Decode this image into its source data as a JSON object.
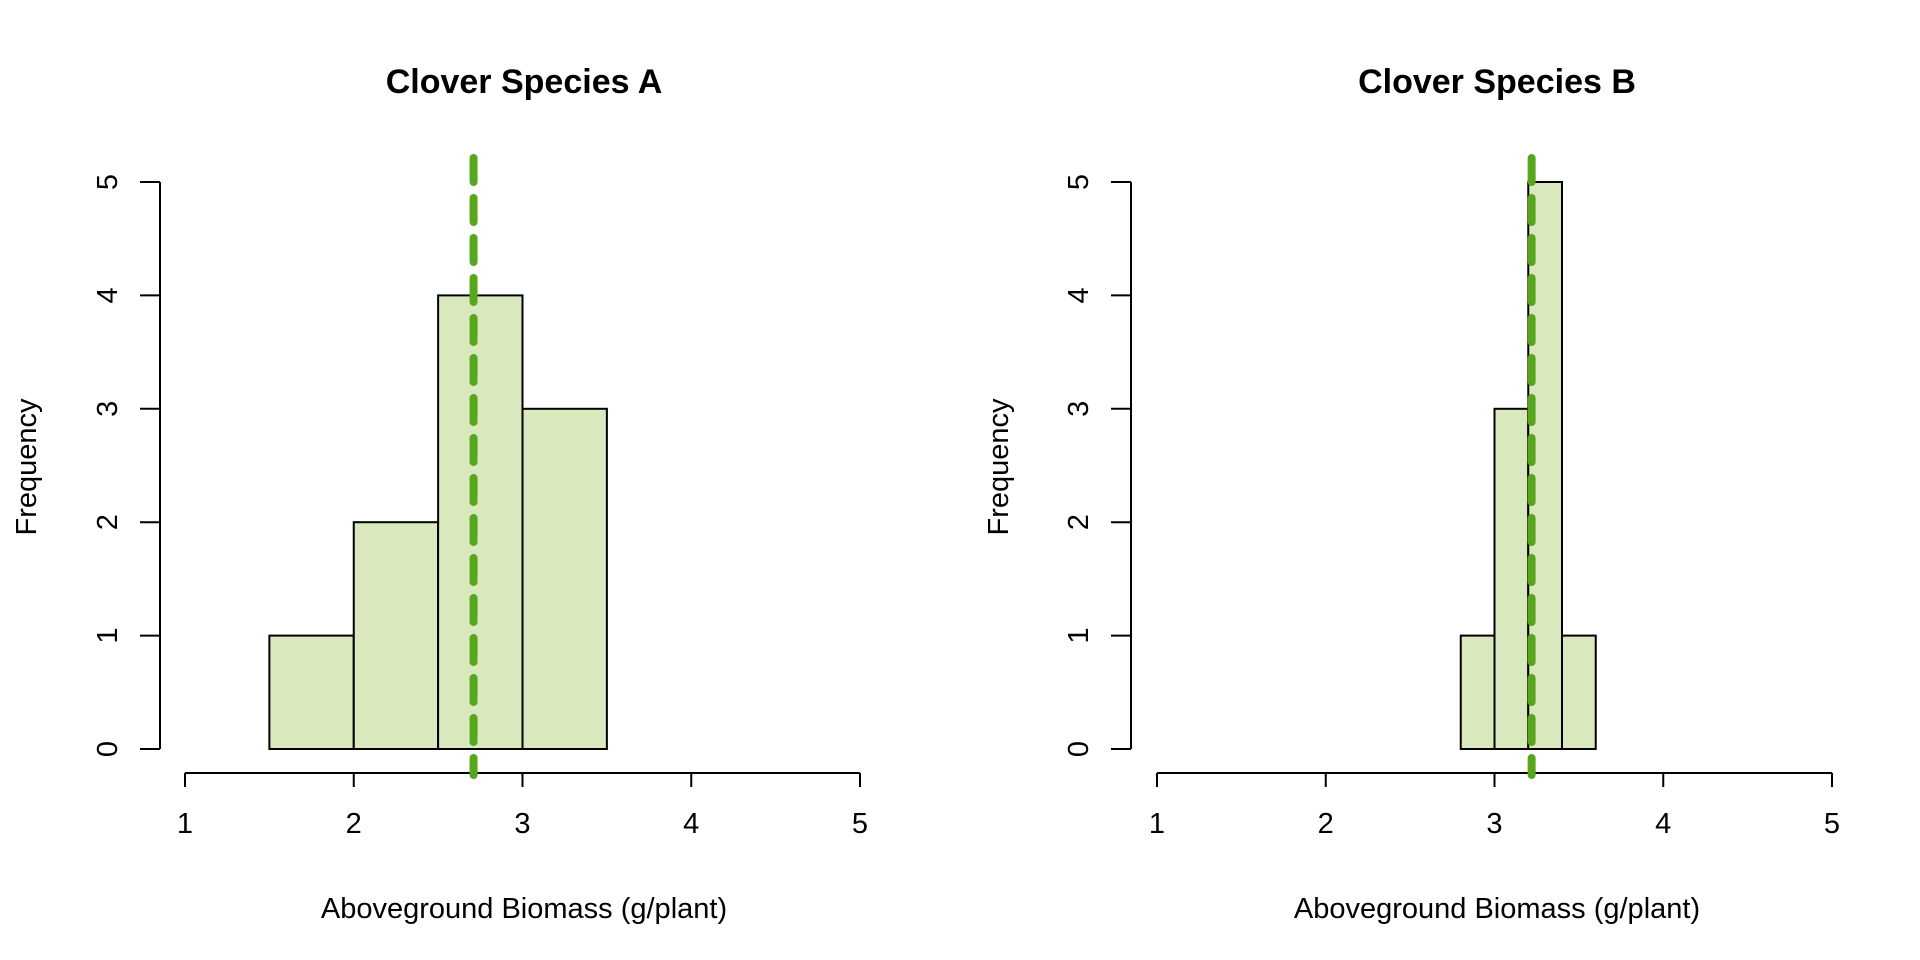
{
  "chart_data": [
    {
      "type": "histogram",
      "title": "Clover Species A",
      "xlabel": "Aboveground Biomass (g/plant)",
      "ylabel": "Frequency",
      "xlim": [
        1,
        5
      ],
      "ylim": [
        0,
        5
      ],
      "x_ticks": [
        "1",
        "2",
        "3",
        "4",
        "5"
      ],
      "y_ticks": [
        "0",
        "1",
        "2",
        "3",
        "4",
        "5"
      ],
      "bins": [
        {
          "from": 1.5,
          "to": 2.0,
          "count": 1
        },
        {
          "from": 2.0,
          "to": 2.5,
          "count": 2
        },
        {
          "from": 2.5,
          "to": 3.0,
          "count": 4
        },
        {
          "from": 3.0,
          "to": 3.5,
          "count": 3
        }
      ],
      "mean_line": 2.71,
      "grid": false
    },
    {
      "type": "histogram",
      "title": "Clover Species B",
      "xlabel": "Aboveground Biomass (g/plant)",
      "ylabel": "Frequency",
      "xlim": [
        1,
        5
      ],
      "ylim": [
        0,
        5
      ],
      "x_ticks": [
        "1",
        "2",
        "3",
        "4",
        "5"
      ],
      "y_ticks": [
        "0",
        "1",
        "2",
        "3",
        "4",
        "5"
      ],
      "bins": [
        {
          "from": 2.8,
          "to": 3.0,
          "count": 1
        },
        {
          "from": 3.0,
          "to": 3.2,
          "count": 3
        },
        {
          "from": 3.2,
          "to": 3.4,
          "count": 5
        },
        {
          "from": 3.4,
          "to": 3.6,
          "count": 1
        }
      ],
      "mean_line": 3.22,
      "grid": false
    }
  ],
  "colors": {
    "bar_fill": "#d9e9bd",
    "bar_stroke": "#000000",
    "mean_line": "#58a61d",
    "axis": "#000000"
  }
}
